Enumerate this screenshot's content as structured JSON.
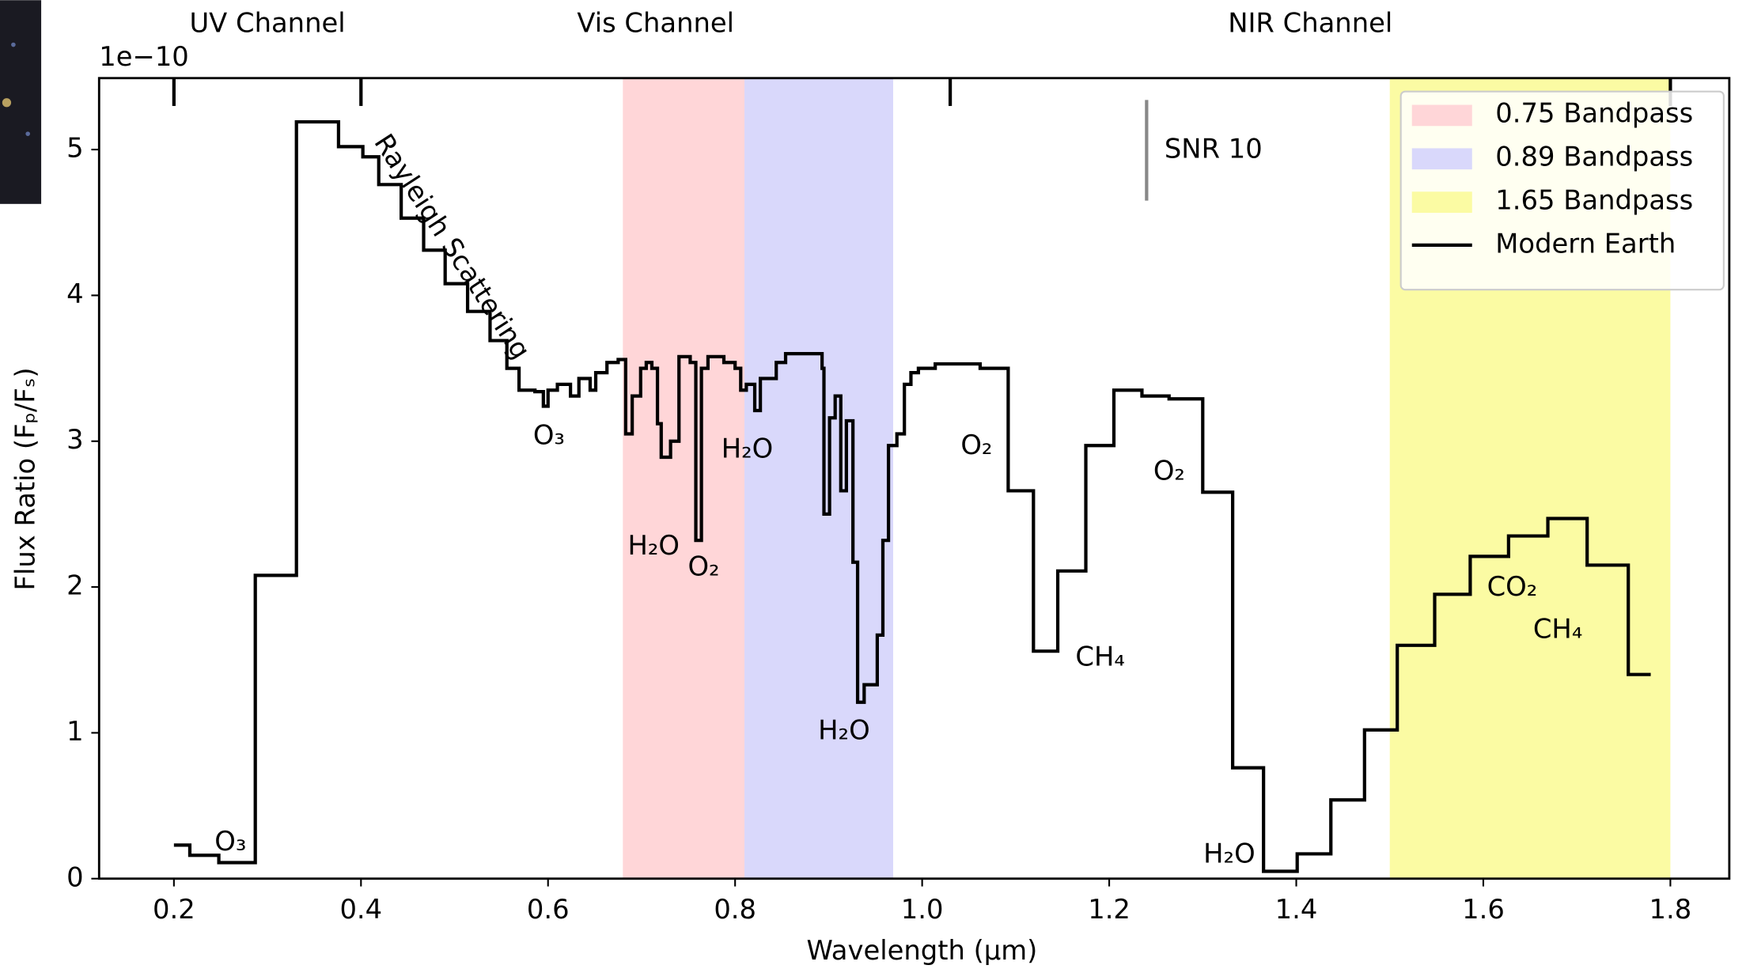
{
  "chart_data": {
    "type": "step",
    "axis_multiplier": "1e−10",
    "xlabel": "Wavelength (µm)",
    "ylabel": "Flux Ratio (Fₚ/Fₛ)",
    "xlim": [
      0.12,
      1.863
    ],
    "ylim": [
      0,
      5.49
    ],
    "xticks": [
      0.2,
      0.4,
      0.6,
      0.8,
      {
        "value": 1,
        "label": "1.0"
      },
      1.2,
      1.4,
      1.6,
      1.8
    ],
    "yticks": [
      0,
      1,
      2,
      3,
      4,
      5
    ],
    "channels": [
      "UV Channel",
      "Vis Channel",
      "NIR Channel"
    ],
    "channel_edges": [
      0.2,
      0.4,
      1.03,
      1.8
    ],
    "bandpasses": [
      {
        "name": "0.75 Bandpass",
        "color": "#ffd6d8",
        "range": [
          0.68,
          0.81
        ]
      },
      {
        "name": "0.89 Bandpass",
        "color": "#d9d8fb",
        "range": [
          0.81,
          0.969
        ]
      },
      {
        "name": "1.65 Bandpass",
        "color": "#fbfba3",
        "range": [
          1.5,
          1.8
        ]
      }
    ],
    "snr_bar": {
      "label": "SNR 10",
      "x": 1.24,
      "y": [
        4.65,
        5.34
      ]
    },
    "legend": "upper right",
    "annotations": [
      "O₃",
      "Rayleigh Scattering",
      "O₃",
      "H₂O",
      "O₂",
      "H₂O",
      "H₂O",
      "O₂",
      "O₂",
      "CH₄",
      "H₂O",
      "CO₂",
      "CH₄"
    ],
    "x": [
      0.2,
      0.217,
      0.248,
      0.287,
      0.331,
      0.376,
      0.402,
      0.419,
      0.443,
      0.467,
      0.49,
      0.514,
      0.538,
      0.556,
      0.569,
      0.586,
      0.595,
      0.6,
      0.61,
      0.624,
      0.633,
      0.645,
      0.651,
      0.663,
      0.675,
      0.683,
      0.69,
      0.699,
      0.705,
      0.711,
      0.717,
      0.721,
      0.731,
      0.74,
      0.752,
      0.758,
      0.764,
      0.771,
      0.788,
      0.8,
      0.806,
      0.812,
      0.821,
      0.827,
      0.844,
      0.854,
      0.89,
      0.893,
      0.895,
      0.901,
      0.907,
      0.913,
      0.919,
      0.926,
      0.931,
      0.938,
      0.952,
      0.958,
      0.964,
      0.973,
      0.981,
      0.988,
      0.996,
      1.014,
      1.062,
      1.092,
      1.119,
      1.145,
      1.175,
      1.205,
      1.235,
      1.264,
      1.3,
      1.332,
      1.365,
      1.401,
      1.437,
      1.473,
      1.508,
      1.548,
      1.586,
      1.627,
      1.669,
      1.711,
      1.755,
      1.779
    ],
    "series": [
      {
        "name": "Modern Earth",
        "color": "#000000",
        "values": [
          0.23,
          0.16,
          0.11,
          2.08,
          5.19,
          5.02,
          4.95,
          4.76,
          4.53,
          4.31,
          4.08,
          3.89,
          3.69,
          3.5,
          3.35,
          3.34,
          3.24,
          3.35,
          3.39,
          3.31,
          3.43,
          3.35,
          3.47,
          3.54,
          3.56,
          3.05,
          3.31,
          3.5,
          3.54,
          3.5,
          3.12,
          2.89,
          3.0,
          3.58,
          3.54,
          2.32,
          3.5,
          3.58,
          3.54,
          3.5,
          3.35,
          3.39,
          3.21,
          3.43,
          3.54,
          3.6,
          3.6,
          3.5,
          2.5,
          3.16,
          3.31,
          2.66,
          3.14,
          2.17,
          1.21,
          1.33,
          1.67,
          2.32,
          2.97,
          3.05,
          3.39,
          3.47,
          3.5,
          3.53,
          3.5,
          2.66,
          1.56,
          2.11,
          2.97,
          3.35,
          3.31,
          3.29,
          2.65,
          0.76,
          0.05,
          0.17,
          0.54,
          1.02,
          1.6,
          1.95,
          2.21,
          2.35,
          2.47,
          2.15,
          1.4,
          1.4
        ]
      }
    ]
  }
}
